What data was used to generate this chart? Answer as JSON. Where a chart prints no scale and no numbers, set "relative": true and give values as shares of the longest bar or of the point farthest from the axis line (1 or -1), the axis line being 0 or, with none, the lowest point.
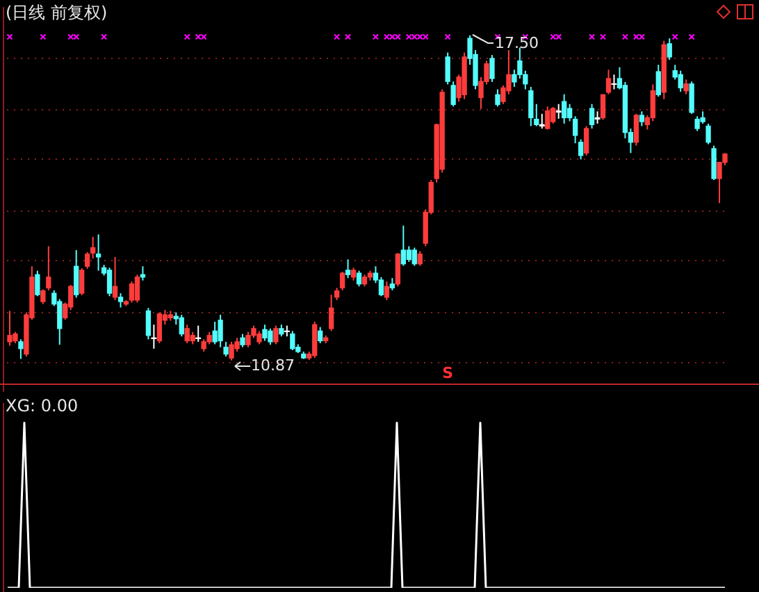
{
  "chart_data": [
    {
      "type": "candlestick",
      "title": "(日线 前复权)",
      "categories": [
        null,
        null,
        null,
        null,
        null,
        null,
        null,
        null,
        null,
        null,
        null,
        null,
        null,
        null,
        null,
        null,
        null,
        null,
        null,
        null,
        null,
        null,
        null,
        null,
        null,
        null,
        null,
        null,
        null,
        null,
        null,
        null,
        null,
        null,
        null,
        null,
        null,
        null,
        null,
        null,
        null,
        null,
        null,
        null,
        null,
        null,
        null,
        null,
        null,
        null,
        null,
        null,
        null,
        null,
        null,
        null,
        null,
        null,
        null,
        null,
        null,
        null,
        null,
        null,
        null,
        null,
        null,
        null,
        null,
        null,
        null,
        null,
        null,
        null,
        null,
        null,
        null,
        null,
        null,
        null,
        null,
        null,
        null,
        null,
        null,
        null,
        null,
        null,
        null,
        null,
        null,
        null,
        null,
        null,
        null,
        null,
        null,
        null,
        null,
        null,
        null,
        null,
        null,
        null,
        null,
        null,
        null,
        null,
        null,
        null,
        null,
        null,
        null,
        null,
        null,
        null,
        null,
        null,
        null,
        null,
        null,
        null,
        null,
        null,
        null,
        null,
        null,
        null,
        null,
        null
      ],
      "ylim": [
        10.37,
        18.08
      ],
      "yticks": [
        {
          "value": 10.83,
          "label": null
        },
        {
          "value": 11.85,
          "label": null
        },
        {
          "value": 12.9,
          "label": null
        },
        {
          "value": 13.92,
          "label": null
        },
        {
          "value": 14.97,
          "label": null
        },
        {
          "value": 15.98,
          "label": null
        },
        {
          "value": 17.03,
          "label": null
        }
      ],
      "grid": "y",
      "tick_labels": false,
      "ohlc": [
        [
          11.25,
          11.88,
          11.17,
          11.38
        ],
        [
          11.27,
          11.45,
          11.22,
          11.41
        ],
        [
          11.25,
          11.3,
          10.9,
          11.11
        ],
        [
          11.0,
          11.85,
          10.95,
          11.8
        ],
        [
          11.74,
          12.79,
          11.7,
          12.57
        ],
        [
          12.62,
          12.7,
          12.18,
          12.21
        ],
        [
          12.07,
          12.32,
          12.02,
          12.29
        ],
        [
          12.35,
          13.2,
          12.3,
          12.57
        ],
        [
          12.24,
          12.3,
          11.98,
          12.02
        ],
        [
          12.07,
          12.12,
          11.19,
          11.52
        ],
        [
          11.74,
          12.05,
          11.7,
          12.02
        ],
        [
          11.96,
          12.41,
          11.9,
          12.38
        ],
        [
          12.79,
          13.12,
          12.15,
          12.21
        ],
        [
          12.24,
          12.75,
          12.2,
          12.71
        ],
        [
          12.79,
          13.08,
          12.74,
          13.04
        ],
        [
          13.06,
          13.39,
          12.95,
          13.17
        ],
        [
          13.04,
          13.44,
          12.7,
          12.98
        ],
        [
          12.76,
          12.82,
          12.6,
          12.65
        ],
        [
          12.71,
          12.76,
          12.18,
          12.24
        ],
        [
          12.16,
          12.98,
          12.1,
          12.38
        ],
        [
          12.16,
          12.24,
          11.95,
          12.07
        ],
        [
          12.02,
          12.1,
          11.98,
          12.07
        ],
        [
          12.1,
          12.48,
          12.05,
          12.43
        ],
        [
          12.1,
          12.62,
          12.05,
          12.57
        ],
        [
          12.62,
          12.79,
          12.5,
          12.57
        ],
        [
          11.88,
          11.94,
          11.3,
          11.38
        ],
        [
          11.33,
          11.6,
          11.11,
          11.33
        ],
        [
          11.27,
          11.85,
          11.22,
          11.82
        ],
        [
          11.69,
          11.9,
          11.6,
          11.8
        ],
        [
          11.74,
          11.88,
          11.68,
          11.8
        ],
        [
          11.77,
          11.85,
          11.6,
          11.72
        ],
        [
          11.74,
          11.8,
          11.36,
          11.41
        ],
        [
          11.27,
          11.6,
          11.22,
          11.52
        ],
        [
          11.27,
          11.45,
          11.2,
          11.38
        ],
        [
          11.33,
          11.58,
          11.25,
          11.33
        ],
        [
          11.11,
          11.3,
          11.05,
          11.25
        ],
        [
          11.25,
          11.45,
          11.2,
          11.38
        ],
        [
          11.47,
          11.66,
          11.2,
          11.25
        ],
        [
          11.69,
          11.8,
          11.14,
          11.27
        ],
        [
          11.14,
          11.25,
          10.95,
          11.0
        ],
        [
          10.92,
          11.25,
          10.87,
          11.19
        ],
        [
          11.11,
          11.33,
          11.05,
          11.25
        ],
        [
          11.33,
          11.41,
          11.14,
          11.19
        ],
        [
          11.19,
          11.45,
          11.14,
          11.38
        ],
        [
          11.38,
          11.58,
          11.33,
          11.52
        ],
        [
          11.25,
          11.47,
          11.2,
          11.41
        ],
        [
          11.5,
          11.6,
          11.27,
          11.33
        ],
        [
          11.47,
          11.52,
          11.19,
          11.25
        ],
        [
          11.25,
          11.58,
          11.2,
          11.52
        ],
        [
          11.52,
          11.6,
          11.36,
          11.41
        ],
        [
          11.47,
          11.58,
          11.36,
          11.47
        ],
        [
          11.41,
          11.47,
          11.08,
          11.11
        ],
        [
          11.14,
          11.2,
          11.02,
          11.05
        ],
        [
          11.0,
          11.05,
          10.9,
          10.92
        ],
        [
          10.92,
          11.05,
          10.88,
          11.0
        ],
        [
          10.97,
          11.66,
          10.92,
          11.6
        ],
        [
          11.47,
          11.55,
          11.22,
          11.27
        ],
        [
          11.27,
          11.38,
          11.22,
          11.33
        ],
        [
          11.52,
          12.21,
          11.47,
          11.94
        ],
        [
          12.16,
          12.35,
          12.1,
          12.29
        ],
        [
          12.35,
          12.68,
          12.3,
          12.65
        ],
        [
          12.71,
          12.93,
          12.55,
          12.62
        ],
        [
          12.57,
          12.76,
          12.5,
          12.71
        ],
        [
          12.65,
          12.7,
          12.38,
          12.43
        ],
        [
          12.43,
          12.62,
          12.38,
          12.57
        ],
        [
          12.57,
          12.7,
          12.5,
          12.65
        ],
        [
          12.65,
          12.79,
          12.45,
          12.51
        ],
        [
          12.51,
          12.57,
          12.18,
          12.21
        ],
        [
          12.16,
          12.48,
          12.1,
          12.38
        ],
        [
          12.43,
          12.55,
          12.3,
          12.35
        ],
        [
          12.43,
          13.06,
          12.38,
          13.04
        ],
        [
          13.12,
          13.62,
          12.8,
          12.84
        ],
        [
          13.12,
          13.2,
          12.88,
          12.93
        ],
        [
          13.12,
          13.17,
          12.8,
          12.84
        ],
        [
          12.84,
          13.1,
          12.8,
          13.04
        ],
        [
          13.26,
          13.95,
          13.2,
          13.89
        ],
        [
          13.89,
          14.55,
          13.85,
          14.5
        ],
        [
          14.58,
          15.7,
          14.5,
          15.68
        ],
        [
          14.77,
          16.4,
          14.7,
          16.34
        ],
        [
          17.06,
          17.15,
          16.5,
          16.56
        ],
        [
          16.48,
          16.56,
          16.05,
          16.09
        ],
        [
          16.23,
          16.7,
          16.15,
          16.65
        ],
        [
          16.29,
          17.15,
          16.2,
          17.06
        ],
        [
          17.44,
          17.5,
          16.9,
          17.03
        ],
        [
          17.11,
          17.2,
          16.4,
          16.48
        ],
        [
          16.23,
          16.65,
          16.0,
          16.56
        ],
        [
          16.56,
          16.98,
          16.5,
          16.92
        ],
        [
          17.03,
          17.1,
          16.55,
          16.62
        ],
        [
          16.29,
          16.4,
          16.05,
          16.09
        ],
        [
          16.15,
          16.48,
          16.1,
          16.43
        ],
        [
          16.37,
          17.2,
          16.3,
          16.7
        ],
        [
          16.7,
          16.8,
          16.45,
          16.55
        ],
        [
          16.98,
          17.25,
          16.62,
          16.7
        ],
        [
          16.7,
          16.78,
          16.4,
          16.51
        ],
        [
          16.37,
          16.45,
          15.65,
          15.82
        ],
        [
          15.79,
          16.1,
          15.65,
          15.68
        ],
        [
          15.68,
          15.9,
          15.6,
          15.68
        ],
        [
          15.6,
          16.05,
          15.58,
          15.96
        ],
        [
          15.74,
          16.04,
          15.7,
          16.01
        ],
        [
          15.96,
          16.1,
          15.8,
          15.96
        ],
        [
          16.15,
          16.3,
          15.7,
          15.82
        ],
        [
          16.01,
          16.1,
          15.75,
          15.82
        ],
        [
          15.79,
          15.85,
          15.3,
          15.46
        ],
        [
          15.32,
          15.38,
          14.97,
          15.05
        ],
        [
          15.1,
          15.65,
          15.05,
          15.6
        ],
        [
          16.01,
          16.1,
          15.6,
          15.68
        ],
        [
          15.82,
          15.95,
          15.7,
          15.82
        ],
        [
          15.82,
          16.3,
          15.78,
          16.29
        ],
        [
          16.34,
          16.8,
          16.3,
          16.62
        ],
        [
          16.51,
          16.7,
          16.4,
          16.51
        ],
        [
          16.62,
          16.85,
          16.4,
          16.43
        ],
        [
          16.48,
          16.55,
          15.4,
          15.52
        ],
        [
          15.52,
          15.6,
          15.1,
          15.32
        ],
        [
          15.32,
          15.9,
          15.25,
          15.87
        ],
        [
          15.87,
          15.95,
          15.65,
          15.74
        ],
        [
          15.68,
          15.87,
          15.58,
          15.82
        ],
        [
          15.82,
          16.5,
          15.75,
          16.37
        ],
        [
          16.76,
          16.9,
          16.25,
          16.29
        ],
        [
          16.34,
          17.39,
          16.2,
          17.31
        ],
        [
          17.33,
          17.44,
          17.0,
          17.06
        ],
        [
          16.78,
          16.9,
          16.6,
          16.65
        ],
        [
          16.7,
          16.78,
          16.35,
          16.43
        ],
        [
          16.37,
          16.6,
          16.3,
          16.51
        ],
        [
          16.51,
          16.56,
          15.9,
          15.93
        ],
        [
          15.79,
          15.85,
          15.55,
          15.6
        ],
        [
          15.82,
          15.95,
          15.7,
          15.74
        ],
        [
          15.65,
          15.7,
          15.28,
          15.32
        ],
        [
          15.19,
          15.25,
          14.55,
          14.58
        ],
        [
          14.58,
          14.91,
          14.08,
          14.91
        ],
        [
          14.91,
          15.1,
          14.85,
          15.08
        ]
      ],
      "colors": [
        "#ff3c3c",
        "#ff3c3c",
        "#54fcfc",
        "#ff3c3c",
        "#ff3c3c",
        "#54fcfc",
        "#ff3c3c",
        "#ff3c3c",
        "#54fcfc",
        "#54fcfc",
        "#ff3c3c",
        "#ff3c3c",
        "#54fcfc",
        "#ff3c3c",
        "#ff3c3c",
        "#ff3c3c",
        "#54fcfc",
        "#54fcfc",
        "#54fcfc",
        "#ff3c3c",
        "#54fcfc",
        "#ff3c3c",
        "#ff3c3c",
        "#ff3c3c",
        "#54fcfc",
        "#54fcfc",
        "#ffffff",
        "#ff3c3c",
        "#ff3c3c",
        "#ff3c3c",
        "#54fcfc",
        "#54fcfc",
        "#ff3c3c",
        "#ff3c3c",
        "#ffffff",
        "#ff3c3c",
        "#ff3c3c",
        "#54fcfc",
        "#54fcfc",
        "#54fcfc",
        "#ff3c3c",
        "#ff3c3c",
        "#54fcfc",
        "#ff3c3c",
        "#ff3c3c",
        "#ff3c3c",
        "#54fcfc",
        "#54fcfc",
        "#ff3c3c",
        "#54fcfc",
        "#ffffff",
        "#54fcfc",
        "#54fcfc",
        "#54fcfc",
        "#ff3c3c",
        "#ff3c3c",
        "#54fcfc",
        "#ff3c3c",
        "#ff3c3c",
        "#ff3c3c",
        "#ff3c3c",
        "#54fcfc",
        "#ff3c3c",
        "#54fcfc",
        "#ff3c3c",
        "#ff3c3c",
        "#54fcfc",
        "#54fcfc",
        "#ff3c3c",
        "#54fcfc",
        "#ff3c3c",
        "#54fcfc",
        "#54fcfc",
        "#54fcfc",
        "#ff3c3c",
        "#ff3c3c",
        "#ff3c3c",
        "#ff3c3c",
        "#ff3c3c",
        "#54fcfc",
        "#54fcfc",
        "#ff3c3c",
        "#ff3c3c",
        "#54fcfc",
        "#54fcfc",
        "#ff3c3c",
        "#ff3c3c",
        "#54fcfc",
        "#54fcfc",
        "#ff3c3c",
        "#ff3c3c",
        "#54fcfc",
        "#54fcfc",
        "#54fcfc",
        "#54fcfc",
        "#54fcfc",
        "#ffffff",
        "#ff3c3c",
        "#ff3c3c",
        "#ffffff",
        "#54fcfc",
        "#54fcfc",
        "#54fcfc",
        "#54fcfc",
        "#ff3c3c",
        "#54fcfc",
        "#ffffff",
        "#ff3c3c",
        "#ff3c3c",
        "#ffffff",
        "#54fcfc",
        "#54fcfc",
        "#54fcfc",
        "#ff3c3c",
        "#54fcfc",
        "#ff3c3c",
        "#ff3c3c",
        "#54fcfc",
        "#ff3c3c",
        "#54fcfc",
        "#54fcfc",
        "#54fcfc",
        "#ff3c3c",
        "#54fcfc",
        "#54fcfc",
        "#54fcfc",
        "#54fcfc",
        "#54fcfc",
        "#ff3c3c",
        "#ff3c3c"
      ],
      "series": [
        {
          "type": "scatter",
          "color": "#ff00ff",
          "marker": "cross",
          "values": [
            17.47,
            null,
            null,
            null,
            null,
            null,
            17.47,
            null,
            null,
            null,
            null,
            17.47,
            17.47,
            null,
            null,
            null,
            null,
            17.47,
            null,
            null,
            null,
            null,
            null,
            null,
            null,
            null,
            null,
            null,
            null,
            null,
            null,
            null,
            17.47,
            null,
            17.47,
            17.47,
            null,
            null,
            null,
            null,
            null,
            null,
            null,
            null,
            null,
            null,
            null,
            null,
            null,
            null,
            null,
            null,
            null,
            null,
            null,
            null,
            null,
            null,
            null,
            17.47,
            null,
            17.47,
            null,
            null,
            null,
            null,
            17.47,
            null,
            17.47,
            17.47,
            17.47,
            null,
            17.47,
            17.47,
            17.47,
            17.47,
            null,
            null,
            null,
            17.47,
            null,
            null,
            null,
            null,
            null,
            null,
            null,
            null,
            17.47,
            null,
            null,
            null,
            null,
            17.47,
            null,
            null,
            null,
            null,
            17.47,
            17.47,
            null,
            null,
            null,
            null,
            null,
            17.47,
            null,
            17.47,
            null,
            null,
            null,
            17.47,
            null,
            17.47,
            17.47,
            null,
            null,
            null,
            null,
            null,
            17.47,
            null,
            null,
            17.47,
            null,
            null,
            null,
            null,
            null,
            null
          ]
        },
        {
          "color": "#ff3030",
          "marker": "none",
          "values": [
            null,
            null,
            null,
            null,
            null,
            null,
            null,
            null,
            null,
            null,
            null,
            null,
            null,
            null,
            null,
            null,
            null,
            null,
            null,
            null,
            null,
            null,
            null,
            null,
            null,
            null,
            null,
            null,
            null,
            null,
            null,
            null,
            null,
            null,
            null,
            null,
            null,
            null,
            null,
            null,
            null,
            null,
            null,
            null,
            null,
            null,
            null,
            null,
            null,
            null,
            null,
            null,
            null,
            null,
            null,
            null,
            null,
            null,
            null,
            null,
            null,
            null,
            null,
            null,
            null,
            null,
            null,
            null,
            null,
            null,
            null,
            null,
            null,
            null,
            null,
            null,
            null,
            null,
            null,
            null,
            null,
            null,
            null,
            null,
            null,
            null,
            null,
            null,
            null,
            null,
            null,
            null,
            null,
            null,
            null,
            null,
            null,
            null,
            null,
            null,
            null,
            null,
            null,
            null,
            null,
            null,
            null,
            null,
            null,
            null,
            null,
            null,
            null,
            null,
            null,
            null,
            null,
            null,
            null,
            null,
            null,
            null,
            null,
            null,
            null,
            null,
            null,
            null,
            null,
            null
          ],
          "value_labels": [
            null,
            null,
            null,
            null,
            null,
            null,
            null,
            null,
            null,
            null,
            null,
            null,
            null,
            null,
            null,
            null,
            null,
            null,
            null,
            null,
            null,
            null,
            null,
            null,
            null,
            null,
            null,
            null,
            null,
            null,
            null,
            null,
            null,
            null,
            null,
            null,
            null,
            null,
            null,
            null,
            null,
            null,
            null,
            null,
            null,
            null,
            null,
            null,
            null,
            null,
            null,
            null,
            null,
            null,
            null,
            null,
            null,
            null,
            null,
            null,
            null,
            null,
            null,
            null,
            null,
            null,
            null,
            null,
            null,
            null,
            null,
            null,
            null,
            null,
            null,
            null,
            null,
            null,
            null,
            "S",
            null,
            null,
            null,
            null,
            null,
            null,
            null,
            null,
            null,
            null,
            null,
            null,
            null,
            null,
            null,
            null,
            null,
            null,
            null,
            null,
            null,
            null,
            null,
            null,
            null,
            null,
            null,
            null,
            null,
            null,
            null,
            null,
            null,
            null,
            null,
            null,
            null,
            null,
            null,
            null,
            null,
            null,
            null,
            null,
            null,
            null,
            null,
            null,
            null,
            null
          ]
        }
      ],
      "annotations": [
        {
          "text": "17.50",
          "y": 17.5
        },
        "10.87"
      ]
    },
    {
      "type": "line",
      "title": "XG: 0.00",
      "relative": true,
      "tick_labels": false,
      "color": "#ffffff",
      "categories": [
        null,
        null,
        null,
        null,
        null,
        null,
        null,
        null,
        null,
        null,
        null,
        null,
        null,
        null,
        null,
        null,
        null,
        null,
        null,
        null,
        null,
        null,
        null,
        null,
        null,
        null,
        null,
        null,
        null,
        null,
        null,
        null,
        null,
        null,
        null,
        null,
        null,
        null,
        null,
        null,
        null,
        null,
        null,
        null,
        null,
        null,
        null,
        null,
        null,
        null,
        null,
        null,
        null,
        null,
        null,
        null,
        null,
        null,
        null,
        null,
        null,
        null,
        null,
        null,
        null,
        null,
        null,
        null,
        null,
        null,
        null,
        null,
        null,
        null,
        null,
        null,
        null,
        null,
        null,
        null,
        null,
        null,
        null,
        null,
        null,
        null,
        null,
        null,
        null,
        null,
        null,
        null,
        null,
        null,
        null,
        null,
        null,
        null,
        null,
        null,
        null,
        null,
        null,
        null,
        null,
        null,
        null,
        null,
        null,
        null,
        null,
        null,
        null,
        null,
        null,
        null,
        null,
        null,
        null,
        null,
        null,
        null,
        null,
        null,
        null,
        null,
        null,
        null,
        null,
        null
      ],
      "values": [
        0,
        0,
        0,
        1,
        0,
        0,
        0,
        0,
        0,
        0,
        0,
        0,
        0,
        0,
        0,
        0,
        0,
        0,
        0,
        0,
        0,
        0,
        0,
        0,
        0,
        0,
        0,
        0,
        0,
        0,
        0,
        0,
        0,
        0,
        0,
        0,
        0,
        0,
        0,
        0,
        0,
        0,
        0,
        0,
        0,
        0,
        0,
        0,
        0,
        0,
        0,
        0,
        0,
        0,
        0,
        0,
        0,
        0,
        0,
        0,
        0,
        0,
        0,
        0,
        0,
        0,
        0,
        0,
        0,
        0,
        1,
        0,
        0,
        0,
        0,
        0,
        0,
        0,
        0,
        0,
        0,
        0,
        0,
        0,
        0,
        1,
        0,
        0,
        0,
        0,
        0,
        0,
        0,
        0,
        0,
        0,
        0,
        0,
        0,
        0,
        0,
        0,
        0,
        0,
        0,
        0,
        0,
        0,
        0,
        0,
        0,
        0,
        0,
        0,
        0,
        0,
        0,
        0,
        0,
        0,
        0,
        0,
        0,
        0,
        0,
        0,
        0,
        0,
        0,
        0
      ]
    }
  ]
}
